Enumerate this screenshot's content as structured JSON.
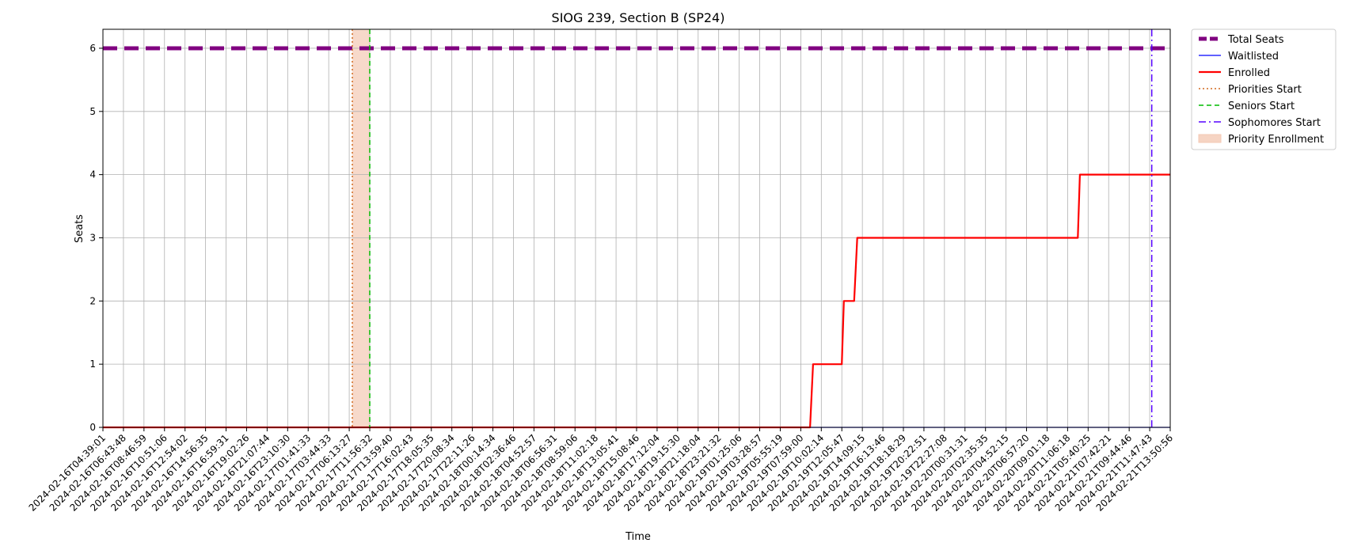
{
  "chart_data": {
    "type": "line",
    "title": "SIOG 239, Section B (SP24)",
    "xlabel": "Time",
    "ylabel": "Seats",
    "ylim": [
      0,
      6.3
    ],
    "yticks": [
      0,
      1,
      2,
      3,
      4,
      5,
      6
    ],
    "grid": true,
    "legend_position": "outside-top-right",
    "x_tick_labels": [
      "2024-02-16T04:39:01",
      "2024-02-16T06:43:48",
      "2024-02-16T08:46:59",
      "2024-02-16T10:51:06",
      "2024-02-16T12:54:02",
      "2024-02-16T14:56:35",
      "2024-02-16T16:59:31",
      "2024-02-16T19:02:26",
      "2024-02-16T21:07:44",
      "2024-02-16T23:10:30",
      "2024-02-17T01:41:33",
      "2024-02-17T03:44:33",
      "2024-02-17T06:13:27",
      "2024-02-17T11:56:32",
      "2024-02-17T13:59:40",
      "2024-02-17T16:02:43",
      "2024-02-17T18:05:35",
      "2024-02-17T20:08:34",
      "2024-02-17T22:11:26",
      "2024-02-18T00:14:34",
      "2024-02-18T02:36:46",
      "2024-02-18T04:52:57",
      "2024-02-18T06:56:31",
      "2024-02-18T08:59:06",
      "2024-02-18T11:02:18",
      "2024-02-18T13:05:41",
      "2024-02-18T15:08:46",
      "2024-02-18T17:12:04",
      "2024-02-18T19:15:30",
      "2024-02-18T21:18:04",
      "2024-02-18T23:21:32",
      "2024-02-19T01:25:06",
      "2024-02-19T03:28:57",
      "2024-02-19T05:55:19",
      "2024-02-19T07:59:00",
      "2024-02-19T10:02:14",
      "2024-02-19T12:05:47",
      "2024-02-19T14:09:15",
      "2024-02-19T16:13:46",
      "2024-02-19T18:18:29",
      "2024-02-19T20:22:51",
      "2024-02-19T22:27:08",
      "2024-02-20T00:31:31",
      "2024-02-20T02:35:35",
      "2024-02-20T04:52:15",
      "2024-02-20T06:57:20",
      "2024-02-20T09:01:18",
      "2024-02-20T11:06:18",
      "2024-02-21T05:40:25",
      "2024-02-21T07:42:21",
      "2024-02-21T09:44:46",
      "2024-02-21T11:47:43",
      "2024-02-21T13:50:56"
    ],
    "series": [
      {
        "name": "Total Seats",
        "color": "#800080",
        "style": "dashed-thick",
        "points": [
          {
            "x": 0,
            "y": 6
          },
          {
            "x": 52,
            "y": 6
          }
        ]
      },
      {
        "name": "Waitlisted",
        "color": "#0000ff",
        "style": "solid-thin",
        "points": [
          {
            "x": 0,
            "y": 0
          },
          {
            "x": 52,
            "y": 0
          }
        ]
      },
      {
        "name": "Enrolled",
        "color": "#ff0000",
        "style": "solid-thick",
        "points": [
          {
            "x": 0,
            "y": 0
          },
          {
            "x": 34.45,
            "y": 0
          },
          {
            "x": 34.6,
            "y": 1
          },
          {
            "x": 36.0,
            "y": 1
          },
          {
            "x": 36.1,
            "y": 2
          },
          {
            "x": 36.6,
            "y": 2
          },
          {
            "x": 36.75,
            "y": 3
          },
          {
            "x": 47.5,
            "y": 3
          },
          {
            "x": 47.6,
            "y": 4
          },
          {
            "x": 52,
            "y": 4
          }
        ]
      }
    ],
    "markers": [
      {
        "name": "Priorities Start",
        "x": 12.15,
        "color": "#d2691e",
        "style": "dotted"
      },
      {
        "name": "Seniors Start",
        "x": 13.0,
        "color": "#00bb00",
        "style": "dashed"
      },
      {
        "name": "Sophomores Start",
        "x": 51.1,
        "color": "#5500ff",
        "style": "dashdot"
      }
    ],
    "spans": [
      {
        "name": "Priority Enrollment",
        "x_start": 12.15,
        "x_end": 13.0,
        "color": "#f4c9b4"
      }
    ],
    "legend": [
      {
        "label": "Total Seats",
        "kind": "line",
        "color": "#800080",
        "style": "dashed-thick"
      },
      {
        "label": "Waitlisted",
        "kind": "line",
        "color": "#0000ff",
        "style": "solid-thin"
      },
      {
        "label": "Enrolled",
        "kind": "line",
        "color": "#ff0000",
        "style": "solid-thick"
      },
      {
        "label": "Priorities Start",
        "kind": "line",
        "color": "#d2691e",
        "style": "dotted"
      },
      {
        "label": "Seniors Start",
        "kind": "line",
        "color": "#00bb00",
        "style": "dashed"
      },
      {
        "label": "Sophomores Start",
        "kind": "line",
        "color": "#5500ff",
        "style": "dashdot"
      },
      {
        "label": "Priority Enrollment",
        "kind": "patch",
        "color": "#f4c9b4"
      }
    ]
  }
}
